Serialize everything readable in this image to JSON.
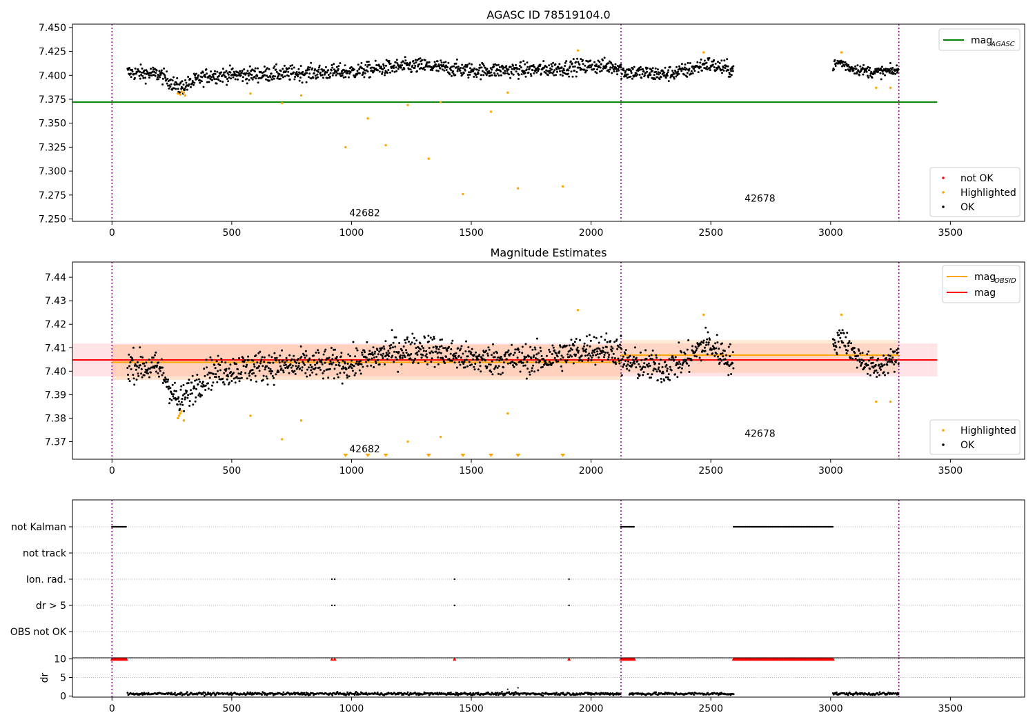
{
  "chart_data": [
    {
      "type": "scatter",
      "title": "AGASC ID 78519104.0",
      "xlim": [
        -165,
        3810
      ],
      "ylim": [
        7.2475,
        7.4535
      ],
      "x_ticks": [
        0,
        500,
        1000,
        1500,
        2000,
        2500,
        3000,
        3500
      ],
      "y_ticks": [
        7.25,
        7.275,
        7.3,
        7.325,
        7.35,
        7.375,
        7.4,
        7.425,
        7.45
      ],
      "y_tick_labels": [
        "7.250",
        "7.275",
        "7.300",
        "7.325",
        "7.350",
        "7.375",
        "7.400",
        "7.425",
        "7.450"
      ],
      "obs_boundaries": [
        0,
        2125,
        3285
      ],
      "obs_labels": [
        {
          "text": "42682",
          "x": 1055,
          "y": 7.253
        },
        {
          "text": "42678",
          "x": 2705,
          "y": 7.268
        }
      ],
      "lines": [
        {
          "name": "mag_AGASC",
          "color": "#008000",
          "x": [
            -165,
            3445
          ],
          "y": [
            7.372,
            7.372
          ]
        }
      ],
      "legend_lines": [
        {
          "label": "mag",
          "subscript": "AGASC",
          "color": "#008000"
        }
      ],
      "legend_points": [
        {
          "label": "not OK",
          "color": "#ff0000"
        },
        {
          "label": "Highlighted",
          "color": "#ffa500"
        },
        {
          "label": "OK",
          "color": "#000000"
        }
      ],
      "ok_segments": [
        {
          "x": [
            65,
            2125
          ],
          "level": [
            [
              65,
              7.403
            ],
            [
              200,
              7.401
            ],
            [
              280,
              7.387
            ],
            [
              330,
              7.392
            ],
            [
              400,
              7.4
            ],
            [
              600,
              7.401
            ],
            [
              1000,
              7.404
            ],
            [
              1200,
              7.409
            ],
            [
              1300,
              7.41
            ],
            [
              1500,
              7.405
            ],
            [
              1800,
              7.406
            ],
            [
              2000,
              7.41
            ],
            [
              2125,
              7.409
            ]
          ],
          "noise": 0.0055
        },
        {
          "x": [
            2125,
            2595
          ],
          "level": [
            [
              2125,
              7.404
            ],
            [
              2300,
              7.401
            ],
            [
              2400,
              7.405
            ],
            [
              2480,
              7.412
            ],
            [
              2595,
              7.405
            ]
          ],
          "noise": 0.0055
        },
        {
          "x": [
            3010,
            3285
          ],
          "level": [
            [
              3010,
              7.41
            ],
            [
              3040,
              7.414
            ],
            [
              3080,
              7.408
            ],
            [
              3180,
              7.403
            ],
            [
              3285,
              7.405
            ]
          ],
          "noise": 0.004
        }
      ],
      "highlighted": [
        {
          "x": 275,
          "y": 7.381
        },
        {
          "x": 285,
          "y": 7.38
        },
        {
          "x": 290,
          "y": 7.383
        },
        {
          "x": 300,
          "y": 7.382
        },
        {
          "x": 305,
          "y": 7.379
        },
        {
          "x": 578,
          "y": 7.381
        },
        {
          "x": 710,
          "y": 7.371
        },
        {
          "x": 790,
          "y": 7.379
        },
        {
          "x": 975,
          "y": 7.325
        },
        {
          "x": 1068,
          "y": 7.355
        },
        {
          "x": 1143,
          "y": 7.327
        },
        {
          "x": 1235,
          "y": 7.369
        },
        {
          "x": 1322,
          "y": 7.313
        },
        {
          "x": 1372,
          "y": 7.372
        },
        {
          "x": 1465,
          "y": 7.276
        },
        {
          "x": 1582,
          "y": 7.362
        },
        {
          "x": 1652,
          "y": 7.382
        },
        {
          "x": 1695,
          "y": 7.282
        },
        {
          "x": 1882,
          "y": 7.284
        },
        {
          "x": 1945,
          "y": 7.426
        },
        {
          "x": 2470,
          "y": 7.424
        },
        {
          "x": 3045,
          "y": 7.424
        },
        {
          "x": 3190,
          "y": 7.387
        },
        {
          "x": 3250,
          "y": 7.387
        }
      ]
    },
    {
      "type": "scatter",
      "title": "Magnitude Estimates",
      "xlim": [
        -165,
        3810
      ],
      "ylim": [
        7.3625,
        7.4465
      ],
      "x_ticks": [
        0,
        500,
        1000,
        1500,
        2000,
        2500,
        3000,
        3500
      ],
      "y_ticks": [
        7.37,
        7.38,
        7.39,
        7.4,
        7.41,
        7.42,
        7.43,
        7.44
      ],
      "y_tick_labels": [
        "7.37",
        "7.38",
        "7.39",
        "7.40",
        "7.41",
        "7.42",
        "7.43",
        "7.44"
      ],
      "obs_boundaries": [
        0,
        2125,
        3285
      ],
      "obs_labels": [
        {
          "text": "42682",
          "x": 1055,
          "y": 7.3655
        },
        {
          "text": "42678",
          "x": 2705,
          "y": 7.372
        }
      ],
      "bands": [
        {
          "color": "#ff9aa8",
          "opacity": 0.28,
          "x": [
            -165,
            3445
          ],
          "y": [
            7.3978,
            7.4118
          ]
        },
        {
          "color": "#ffb070",
          "opacity": 0.35,
          "x": [
            0,
            2125
          ],
          "y": [
            7.3963,
            7.4113
          ]
        },
        {
          "color": "#ffb070",
          "opacity": 0.28,
          "x": [
            2125,
            3285
          ],
          "y": [
            7.3993,
            7.4133
          ]
        }
      ],
      "lines": [
        {
          "name": "mag_OBSID_1",
          "color": "#ffa500",
          "x": [
            0,
            2125
          ],
          "y": [
            7.4038,
            7.4038
          ]
        },
        {
          "name": "mag_OBSID_2",
          "color": "#ffa500",
          "x": [
            2125,
            3285
          ],
          "y": [
            7.4068,
            7.4068
          ]
        },
        {
          "name": "mag",
          "color": "#ff0000",
          "x": [
            -165,
            3445
          ],
          "y": [
            7.4048,
            7.4048
          ]
        }
      ],
      "legend_lines": [
        {
          "label": "mag",
          "subscript": "OBSID",
          "color": "#ffa500"
        },
        {
          "label": "mag",
          "subscript": "",
          "color": "#ff0000"
        }
      ],
      "legend_points": [
        {
          "label": "Highlighted",
          "color": "#ffa500"
        },
        {
          "label": "OK",
          "color": "#000000"
        }
      ],
      "ok_segments": [
        {
          "x": [
            65,
            2125
          ],
          "level": [
            [
              65,
              7.403
            ],
            [
              200,
              7.401
            ],
            [
              280,
              7.386
            ],
            [
              330,
              7.392
            ],
            [
              400,
              7.399
            ],
            [
              600,
              7.402
            ],
            [
              1000,
              7.403
            ],
            [
              1150,
              7.408
            ],
            [
              1300,
              7.41
            ],
            [
              1500,
              7.405
            ],
            [
              1800,
              7.405
            ],
            [
              2000,
              7.41
            ],
            [
              2125,
              7.409
            ]
          ],
          "noise": 0.0045
        },
        {
          "x": [
            2125,
            2595
          ],
          "level": [
            [
              2125,
              7.404
            ],
            [
              2300,
              7.401
            ],
            [
              2400,
              7.405
            ],
            [
              2480,
              7.412
            ],
            [
              2595,
              7.404
            ]
          ],
          "noise": 0.0045
        },
        {
          "x": [
            3010,
            3285
          ],
          "level": [
            [
              3010,
              7.409
            ],
            [
              3045,
              7.416
            ],
            [
              3090,
              7.408
            ],
            [
              3180,
              7.401
            ],
            [
              3285,
              7.406
            ]
          ],
          "noise": 0.0035
        }
      ],
      "highlighted": [
        {
          "x": 275,
          "y": 7.38
        },
        {
          "x": 280,
          "y": 7.381
        },
        {
          "x": 285,
          "y": 7.382
        },
        {
          "x": 290,
          "y": 7.383
        },
        {
          "x": 300,
          "y": 7.379
        },
        {
          "x": 578,
          "y": 7.381
        },
        {
          "x": 710,
          "y": 7.371
        },
        {
          "x": 790,
          "y": 7.379
        },
        {
          "x": 1235,
          "y": 7.37
        },
        {
          "x": 1372,
          "y": 7.372
        },
        {
          "x": 1652,
          "y": 7.382
        },
        {
          "x": 1945,
          "y": 7.426
        },
        {
          "x": 2470,
          "y": 7.424
        },
        {
          "x": 3045,
          "y": 7.424
        },
        {
          "x": 3190,
          "y": 7.387
        },
        {
          "x": 3250,
          "y": 7.387
        }
      ],
      "below_range_markers": [
        975,
        1068,
        1143,
        1322,
        1465,
        1582,
        1695,
        1882
      ]
    },
    {
      "type": "scatter",
      "title": "",
      "xlim": [
        -165,
        3810
      ],
      "x_ticks": [
        0,
        500,
        1000,
        1500,
        2000,
        2500,
        3000,
        3500
      ],
      "obs_boundaries": [
        0,
        2125,
        3285
      ],
      "flag_rows": [
        {
          "label": "not Kalman",
          "ranges": [
            [
              0,
              60
            ],
            [
              2125,
              2180
            ],
            [
              2595,
              3010
            ]
          ],
          "points": []
        },
        {
          "label": "not track",
          "ranges": [],
          "points": []
        },
        {
          "label": "Ion. rad.",
          "ranges": [],
          "points": [
            918,
            930,
            1430,
            1908
          ]
        },
        {
          "label": "dr > 5",
          "ranges": [],
          "points": [
            918,
            930,
            1430,
            1908
          ]
        },
        {
          "label": "OBS not OK",
          "ranges": [],
          "points": []
        }
      ],
      "dr": {
        "ylabel": "dr",
        "ylim": [
          -0.3,
          10.3
        ],
        "y_ticks": [
          0,
          5,
          10
        ],
        "y_tick_labels": [
          "0",
          "5",
          "10"
        ],
        "gridlines": [
          5,
          10
        ],
        "ok_segments": [
          [
            65,
            2125
          ],
          [
            2160,
            2595
          ],
          [
            3010,
            3285
          ]
        ],
        "ok_level": 0.6,
        "outliers": [
          {
            "x": 1652,
            "y": 1.8
          },
          {
            "x": 1695,
            "y": 2.2
          }
        ],
        "capped_ranges": [
          [
            0,
            60
          ],
          [
            2125,
            2180
          ],
          [
            2595,
            3010
          ]
        ],
        "capped_points": [
          918,
          930,
          1430,
          1908
        ],
        "cap_value": 10
      }
    }
  ]
}
